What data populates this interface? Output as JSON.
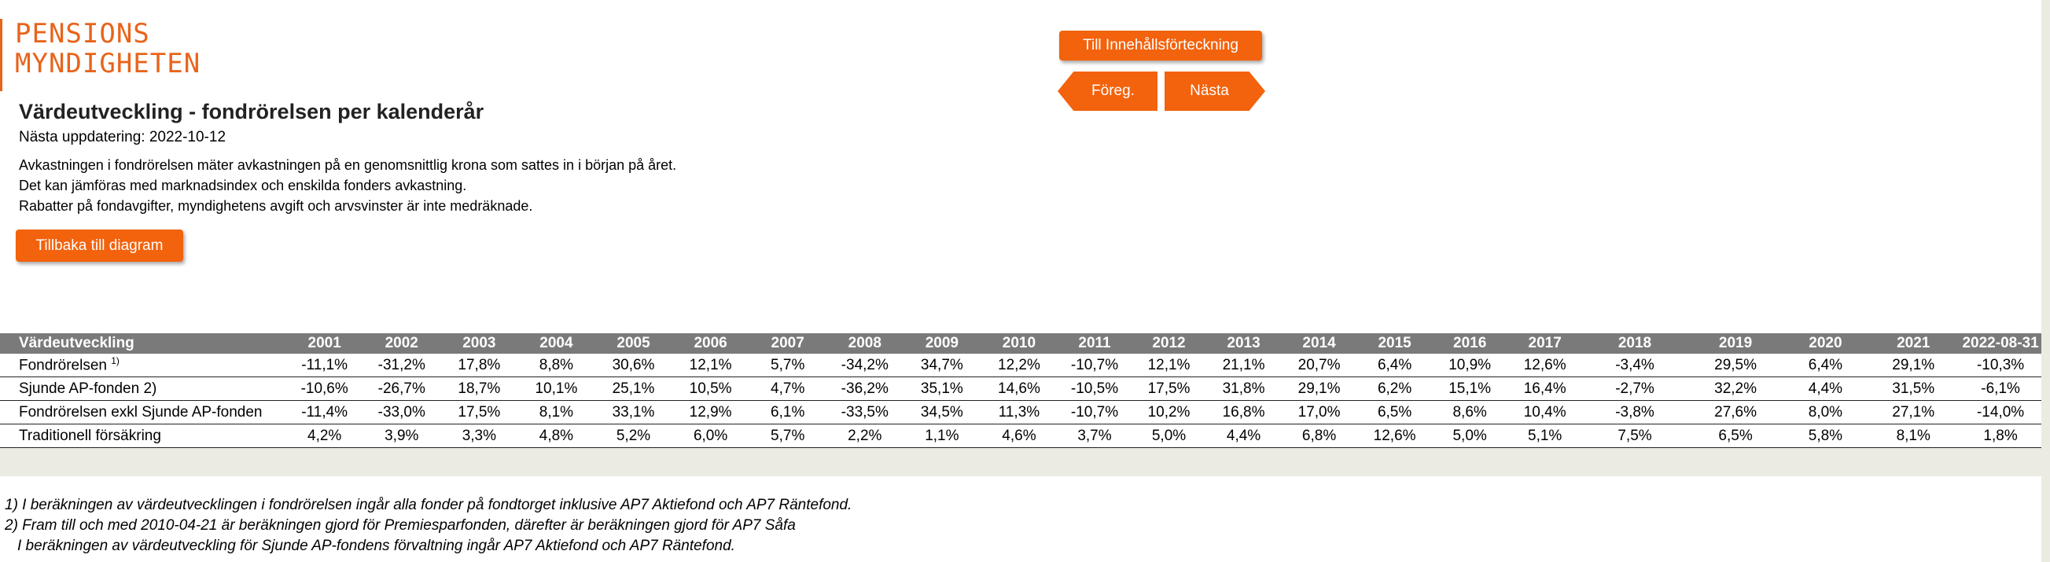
{
  "logo": {
    "line1": "PENSIONS",
    "line2": "MYNDIGHETEN"
  },
  "title": "Värdeutveckling - fondrörelsen per kalenderår",
  "next_update": "Nästa uppdatering: 2022-10-12",
  "description": [
    "Avkastningen i fondrörelsen mäter avkastningen på en genomsnittlig krona som sattes in i början på året.",
    "Det kan jämföras med marknadsindex och enskilda fonders avkastning.",
    "Rabatter på fondavgifter, myndighetens avgift och arvsvinster är inte medräknade."
  ],
  "buttons": {
    "back": "Tillbaka till diagram",
    "toc": "Till Innehållsförteckning",
    "prev": "Föreg.",
    "next": "Nästa"
  },
  "colors": {
    "accent": "#f3620c",
    "logo": "#e8641b",
    "header_bg": "#7a7a7a"
  },
  "table": {
    "header_label": "Värdeutveckling",
    "years": [
      "2001",
      "2002",
      "2003",
      "2004",
      "2005",
      "2006",
      "2007",
      "2008",
      "2009",
      "2010",
      "2011",
      "2012",
      "2013",
      "2014",
      "2015",
      "2016",
      "2017",
      "2018",
      "2019",
      "2020",
      "2021",
      "2022-08-31"
    ],
    "rows": [
      {
        "label": "Fondrörelsen",
        "sup": "1)",
        "values": [
          "-11,1%",
          "-31,2%",
          "17,8%",
          "8,8%",
          "30,6%",
          "12,1%",
          "5,7%",
          "-34,2%",
          "34,7%",
          "12,2%",
          "-10,7%",
          "12,1%",
          "21,1%",
          "20,7%",
          "6,4%",
          "10,9%",
          "12,6%",
          "-3,4%",
          "29,5%",
          "6,4%",
          "29,1%",
          "-10,3%"
        ]
      },
      {
        "label": "Sjunde AP-fonden 2)",
        "sup": "",
        "values": [
          "-10,6%",
          "-26,7%",
          "18,7%",
          "10,1%",
          "25,1%",
          "10,5%",
          "4,7%",
          "-36,2%",
          "35,1%",
          "14,6%",
          "-10,5%",
          "17,5%",
          "31,8%",
          "29,1%",
          "6,2%",
          "15,1%",
          "16,4%",
          "-2,7%",
          "32,2%",
          "4,4%",
          "31,5%",
          "-6,1%"
        ]
      },
      {
        "label": "Fondrörelsen exkl Sjunde AP-fonden",
        "sup": "",
        "values": [
          "-11,4%",
          "-33,0%",
          "17,5%",
          "8,1%",
          "33,1%",
          "12,9%",
          "6,1%",
          "-33,5%",
          "34,5%",
          "11,3%",
          "-10,7%",
          "10,2%",
          "16,8%",
          "17,0%",
          "6,5%",
          "8,6%",
          "10,4%",
          "-3,8%",
          "27,6%",
          "8,0%",
          "27,1%",
          "-14,0%"
        ]
      },
      {
        "label": "Traditionell försäkring",
        "sup": "",
        "values": [
          "4,2%",
          "3,9%",
          "3,3%",
          "4,8%",
          "5,2%",
          "6,0%",
          "5,7%",
          "2,2%",
          "1,1%",
          "4,6%",
          "3,7%",
          "5,0%",
          "4,4%",
          "6,8%",
          "12,6%",
          "5,0%",
          "5,1%",
          "7,5%",
          "6,5%",
          "5,8%",
          "8,1%",
          "1,8%"
        ]
      }
    ]
  },
  "footnotes": [
    "1) I beräkningen av värdeutvecklingen i fondrörelsen ingår alla fonder på fondtorget inklusive AP7 Aktiefond och AP7 Räntefond.",
    "2) Fram till och med 2010-04-21 är beräkningen gjord för Premiesparfonden, därefter är beräkningen gjord för AP7 Såfa",
    "I beräkningen av värdeutveckling för Sjunde AP-fondens förvaltning ingår AP7 Aktiefond och AP7 Räntefond."
  ]
}
